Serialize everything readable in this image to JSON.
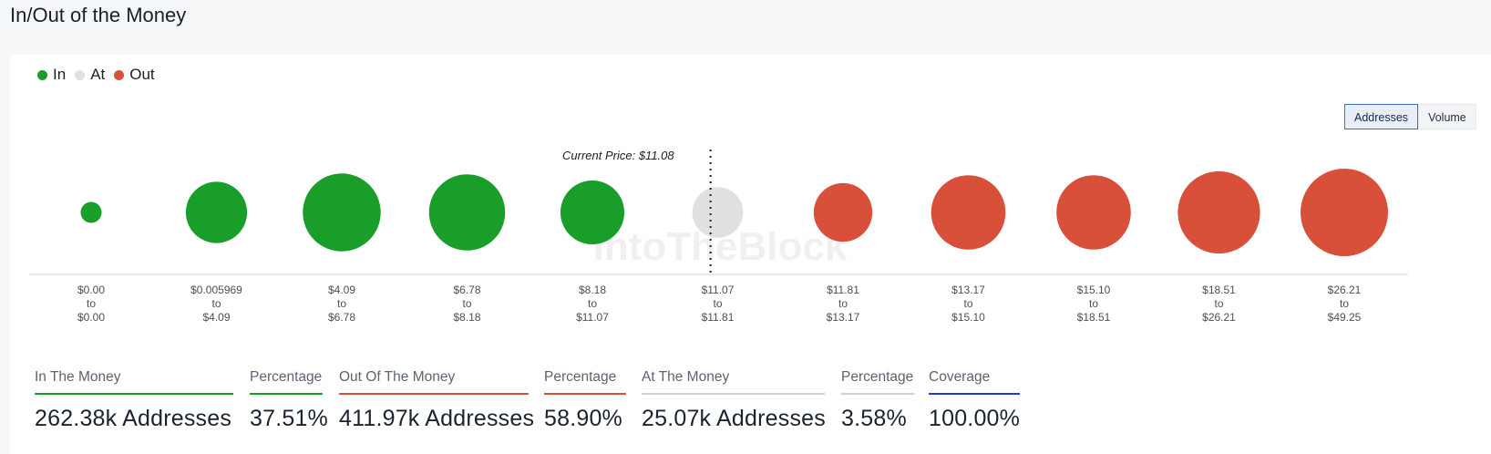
{
  "title": "In/Out of the Money",
  "legend": [
    {
      "label": "In",
      "color": "#1a9e2a"
    },
    {
      "label": "At",
      "color": "#e0e0e0"
    },
    {
      "label": "Out",
      "color": "#d9503a"
    }
  ],
  "toggle": {
    "options": [
      "Addresses",
      "Volume"
    ],
    "selected": "Addresses"
  },
  "colors": {
    "in": "#1a9e2a",
    "at": "#e0e0e0",
    "out": "#d9503a",
    "coverage": "#2438e0",
    "axis": "#c7d3e6"
  },
  "watermark": "IntoTheBlock",
  "chart_data": {
    "type": "bubble",
    "metric": "Addresses",
    "annotation": {
      "label": "Current Price: $11.08",
      "price": 11.08
    },
    "buckets": [
      {
        "from": "$0.00",
        "to": "$0.00",
        "status": "in",
        "relative_size": 0.24
      },
      {
        "from": "$0.005969",
        "to": "$4.09",
        "status": "in",
        "relative_size": 0.7
      },
      {
        "from": "$4.09",
        "to": "$6.78",
        "status": "in",
        "relative_size": 0.89
      },
      {
        "from": "$6.78",
        "to": "$8.18",
        "status": "in",
        "relative_size": 0.87
      },
      {
        "from": "$8.18",
        "to": "$11.07",
        "status": "in",
        "relative_size": 0.73
      },
      {
        "from": "$11.07",
        "to": "$11.81",
        "status": "at",
        "relative_size": 0.58
      },
      {
        "from": "$11.81",
        "to": "$13.17",
        "status": "out",
        "relative_size": 0.67
      },
      {
        "from": "$13.17",
        "to": "$15.10",
        "status": "out",
        "relative_size": 0.85
      },
      {
        "from": "$15.10",
        "to": "$18.51",
        "status": "out",
        "relative_size": 0.85
      },
      {
        "from": "$18.51",
        "to": "$26.21",
        "status": "out",
        "relative_size": 0.94
      },
      {
        "from": "$26.21",
        "to": "$49.25",
        "status": "out",
        "relative_size": 1.0
      }
    ],
    "separator": "to"
  },
  "stats": [
    {
      "label": "In The Money",
      "value": "262.38k Addresses",
      "color": "#1a9e2a"
    },
    {
      "label": "Percentage",
      "value": "37.51%",
      "color": "#1a9e2a"
    },
    {
      "label": "Out Of The Money",
      "value": "411.97k Addresses",
      "color": "#d9503a"
    },
    {
      "label": "Percentage",
      "value": "58.90%",
      "color": "#d9503a"
    },
    {
      "label": "At The Money",
      "value": "25.07k Addresses",
      "color": "#d0d0d0"
    },
    {
      "label": "Percentage",
      "value": "3.58%",
      "color": "#d0d0d0"
    },
    {
      "label": "Coverage",
      "value": "100.00%",
      "color": "#2438e0"
    }
  ]
}
